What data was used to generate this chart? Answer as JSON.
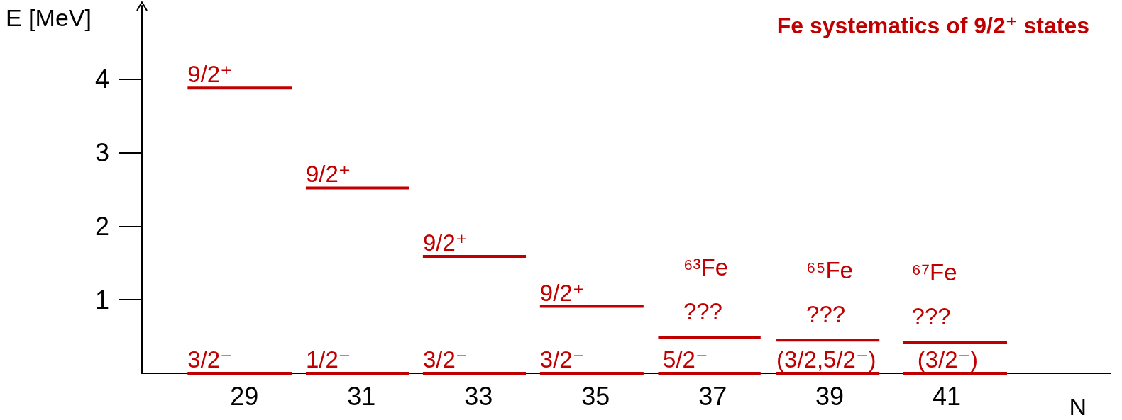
{
  "chart_data": {
    "type": "line",
    "title": "Fe systematics of 9/2⁺ states",
    "xlabel": "N",
    "ylabel": "E [MeV]",
    "xlim": [
      27.25,
      43.8
    ],
    "xticks": [
      29,
      31,
      33,
      35,
      37,
      39,
      41
    ],
    "ylim": [
      0,
      5
    ],
    "yticks": [
      1,
      2,
      3,
      4
    ],
    "grid": false,
    "marker": "none",
    "line_style": "solid",
    "series": [
      {
        "color": "#c00000",
        "x": [
          28.03,
          29.81
        ],
        "values": [
          0,
          0
        ]
      },
      {
        "color": "#c00000",
        "x": [
          28.03,
          29.81
        ],
        "values": [
          3.88,
          3.88
        ]
      },
      {
        "color": "#c00000",
        "x": [
          30.05,
          31.81
        ],
        "values": [
          0,
          0
        ]
      },
      {
        "color": "#c00000",
        "x": [
          30.05,
          31.81
        ],
        "values": [
          2.52,
          2.52
        ]
      },
      {
        "color": "#c00000",
        "x": [
          32.05,
          33.81
        ],
        "values": [
          0,
          0
        ]
      },
      {
        "color": "#c00000",
        "x": [
          32.05,
          33.81
        ],
        "values": [
          1.59,
          1.59
        ]
      },
      {
        "color": "#c00000",
        "x": [
          34.05,
          35.82
        ],
        "values": [
          0,
          0
        ]
      },
      {
        "color": "#c00000",
        "x": [
          34.05,
          35.82
        ],
        "values": [
          0.91,
          0.91
        ]
      },
      {
        "color": "#c00000",
        "x": [
          36.07,
          37.82
        ],
        "values": [
          0,
          0
        ]
      },
      {
        "color": "#c00000",
        "x": [
          36.07,
          37.82
        ],
        "values": [
          0.49,
          0.49
        ]
      },
      {
        "color": "#c00000",
        "x": [
          38.09,
          39.85
        ],
        "values": [
          0,
          0
        ]
      },
      {
        "color": "#c00000",
        "x": [
          38.09,
          39.85
        ],
        "values": [
          0.45,
          0.45
        ]
      },
      {
        "color": "#c00000",
        "x": [
          40.25,
          42.03
        ],
        "values": [
          0,
          0
        ]
      },
      {
        "color": "#c00000",
        "x": [
          40.25,
          42.03
        ],
        "values": [
          0.42,
          0.42
        ]
      }
    ],
    "annotations": [
      {
        "text": "9/2⁺",
        "x": 28.03,
        "y": 3.88
      },
      {
        "text": "9/2⁺",
        "x": 30.05,
        "y": 2.52
      },
      {
        "text": "9/2⁺",
        "x": 32.05,
        "y": 1.59
      },
      {
        "text": "9/2⁺",
        "x": 34.05,
        "y": 0.91
      },
      {
        "text": "3/2⁻",
        "x": 28.03,
        "y": 0
      },
      {
        "text": "1/2⁻",
        "x": 30.05,
        "y": 0
      },
      {
        "text": "3/2⁻",
        "x": 32.05,
        "y": 0
      },
      {
        "text": "3/2⁻",
        "x": 34.05,
        "y": 0
      },
      {
        "text": "5/2⁻",
        "x": 36.15,
        "y": 0
      },
      {
        "text": "(3/2,5/2⁻)",
        "x": 38.09,
        "y": 0
      },
      {
        "text": "(3/2⁻)",
        "x": 40.5,
        "y": 0
      },
      {
        "text": "⁶³Fe\n???",
        "x": 36.5,
        "y": 0.49
      },
      {
        "text": "⁶⁵Fe\n???",
        "x": 38.6,
        "y": 0.45
      },
      {
        "text": "⁶⁷Fe\n???",
        "x": 40.4,
        "y": 0.42
      }
    ]
  }
}
